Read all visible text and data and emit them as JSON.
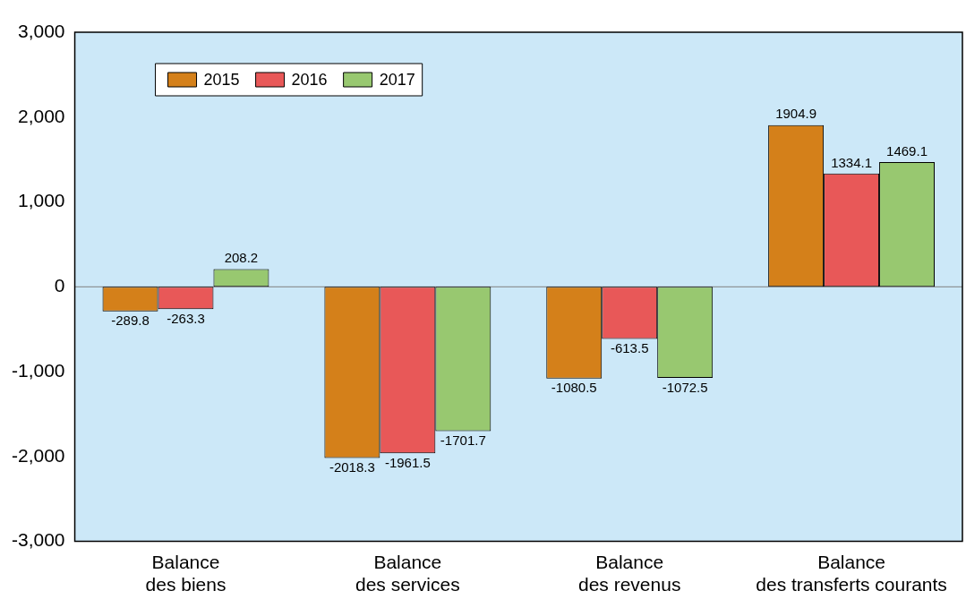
{
  "chart_data": {
    "type": "bar",
    "categories": [
      "Balance des biens",
      "Balance des services",
      "Balance des revenus",
      "Balance des transferts courants"
    ],
    "series": [
      {
        "name": "2015",
        "color": "#d4801a",
        "values": [
          -289.8,
          -2018.3,
          -1080.5,
          1904.9
        ]
      },
      {
        "name": "2016",
        "color": "#e85858",
        "values": [
          -263.3,
          -1961.5,
          -613.5,
          1334.1
        ]
      },
      {
        "name": "2017",
        "color": "#98c870",
        "values": [
          208.2,
          -1701.7,
          -1072.5,
          1469.1
        ]
      }
    ],
    "ylim": [
      -3000,
      3000
    ],
    "yticks": [
      {
        "value": -3000,
        "label": "-3,000"
      },
      {
        "value": -2000,
        "label": "-2,000"
      },
      {
        "value": -1000,
        "label": "-1,000"
      },
      0,
      {
        "value": 1000,
        "label": "1,000"
      },
      {
        "value": 2000,
        "label": "2,000"
      },
      {
        "value": 3000,
        "label": "3,000"
      }
    ],
    "ref_lines": [
      {
        "axis": "y",
        "value": 0,
        "color": "#808080"
      }
    ],
    "data_labels": true,
    "legend": "top left",
    "grid": false
  }
}
